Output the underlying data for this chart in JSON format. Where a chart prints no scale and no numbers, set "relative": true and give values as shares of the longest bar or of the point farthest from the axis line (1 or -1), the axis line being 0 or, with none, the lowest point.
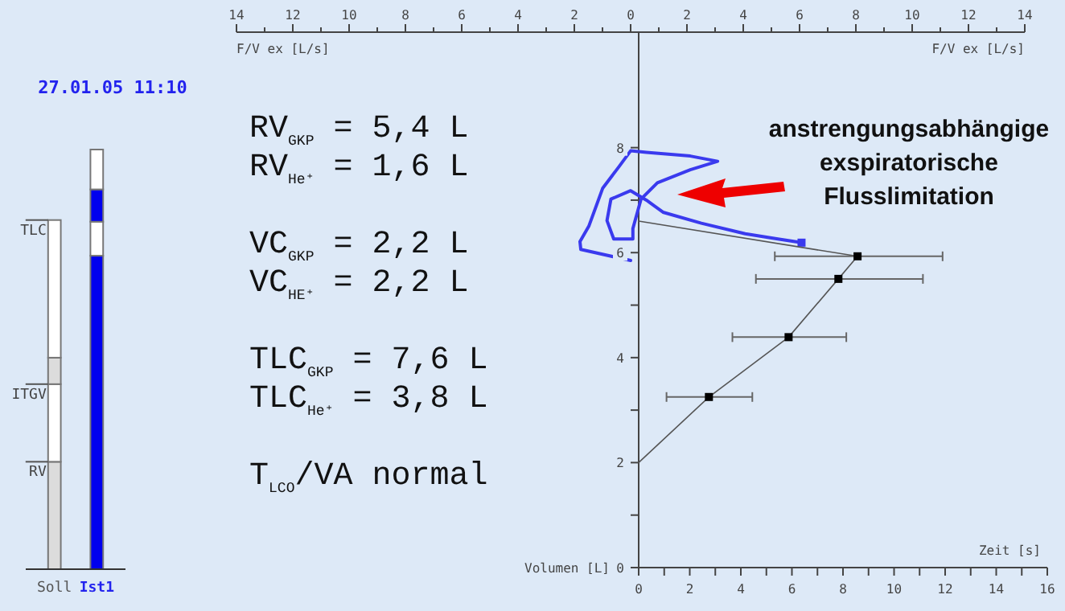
{
  "chart_data": [
    {
      "type": "bar",
      "title": "27.01.05 11:10",
      "categories": [
        "Soll",
        "Ist1"
      ],
      "stacked": true,
      "relative": true,
      "series": [
        {
          "color": "#dcdcdc",
          "values": [
            0.256,
            null
          ]
        },
        {
          "color": "#0000ee",
          "values": [
            null,
            0.747
          ]
        },
        {
          "color": "#ffffff",
          "values": [
            0.185,
            0.081
          ]
        },
        {
          "color": "#dcdcdc",
          "values": [
            0.063,
            null
          ]
        },
        {
          "color": "#0000ee",
          "values": [
            null,
            0.077
          ]
        },
        {
          "color": "#ffffff",
          "values": [
            0.328,
            0.095
          ]
        }
      ],
      "annotations": [
        {
          "text": "TLC",
          "x": "Soll",
          "y": 0.832
        },
        {
          "text": "ITGV",
          "x": "Soll",
          "y": 0.441
        },
        {
          "text": "RV",
          "x": "Soll",
          "y": 0.256
        }
      ]
    },
    {
      "type": "line",
      "xlabel": "Zeit [s]",
      "ylabel": "Volumen [L]",
      "x2label": "F/V ex [L/s]",
      "xlim": [
        0,
        16
      ],
      "xticks": [
        0,
        {
          "value": 1,
          "label": null
        },
        2,
        {
          "value": 3,
          "label": null
        },
        4,
        {
          "value": 5,
          "label": null
        },
        6,
        {
          "value": 7,
          "label": null
        },
        8,
        {
          "value": 9,
          "label": null
        },
        10,
        {
          "value": 11,
          "label": null
        },
        12,
        {
          "value": 13,
          "label": null
        },
        14,
        {
          "value": 15,
          "label": null
        },
        16
      ],
      "x2lim": [
        -14,
        14
      ],
      "x2ticks": [
        {
          "value": -14,
          "label": "14"
        },
        {
          "value": -13,
          "label": null
        },
        {
          "value": -12,
          "label": "12"
        },
        {
          "value": -11,
          "label": null
        },
        {
          "value": -10,
          "label": "10"
        },
        {
          "value": -9,
          "label": null
        },
        {
          "value": -8,
          "label": "8"
        },
        {
          "value": -7,
          "label": null
        },
        {
          "value": -6,
          "label": "6"
        },
        {
          "value": -5,
          "label": null
        },
        {
          "value": -4,
          "label": "4"
        },
        {
          "value": -3,
          "label": null
        },
        {
          "value": -2,
          "label": "2"
        },
        {
          "value": -1,
          "label": null
        },
        0,
        {
          "value": 1,
          "label": null
        },
        2,
        {
          "value": 3,
          "label": null
        },
        4,
        {
          "value": 5,
          "label": null
        },
        6,
        {
          "value": 7,
          "label": null
        },
        8,
        {
          "value": 9,
          "label": null
        },
        10,
        {
          "value": 11,
          "label": null
        },
        12,
        {
          "value": 13,
          "label": null
        },
        14
      ],
      "ylim": [
        0,
        10.2
      ],
      "yticks": [
        0,
        {
          "value": 1,
          "label": null
        },
        2,
        {
          "value": 3,
          "label": null
        },
        4,
        {
          "value": 5,
          "label": null
        },
        6,
        {
          "value": 7,
          "label": null
        },
        8
      ],
      "series": [
        {
          "type": "line",
          "axis": "x2",
          "color": "#3a3aee",
          "x": [
            0,
            -1.77,
            -1.8,
            -1.48,
            -0.99,
            -0.41,
            0,
            0.56,
            2.12,
            3.09,
            2.12,
            0.95,
            0.37,
            0.08,
            0.08,
            -0.6,
            -0.84,
            -0.7,
            0,
            0.56,
            1.15,
            2.51,
            4.07,
            5.23,
            6.07
          ],
          "values": [
            5.85,
            6.06,
            6.21,
            6.51,
            7.23,
            7.64,
            7.94,
            7.91,
            7.84,
            7.74,
            7.58,
            7.33,
            7.02,
            6.46,
            6.26,
            6.26,
            6.61,
            7.02,
            7.18,
            7.0,
            6.77,
            6.56,
            6.36,
            6.26,
            6.19
          ]
        },
        {
          "type": "scatter",
          "axis": "x2",
          "marker": "square",
          "color": "#3a3aee",
          "x": [
            6.07
          ],
          "values": [
            6.19
          ]
        },
        {
          "type": "line",
          "color": "#555555",
          "x": [
            0,
            2.75,
            5.87,
            7.82,
            8.57,
            0
          ],
          "values": [
            2.0,
            3.25,
            4.39,
            5.5,
            5.93,
            6.6
          ]
        },
        {
          "type": "scatter",
          "marker": "square",
          "color": "#000000",
          "x": [
            2.75,
            5.87,
            7.82,
            8.57
          ],
          "values": [
            3.25,
            4.39,
            5.5,
            5.93
          ],
          "xerrors": [
            [
              1.09,
              4.45
            ],
            [
              3.67,
              8.13
            ],
            [
              4.59,
              11.13
            ],
            [
              5.33,
              11.9
            ]
          ]
        }
      ],
      "annotations": [
        "RV$_{GKP}$ = 5,4 L",
        "RV$_{He⁺}$ = 1,6 L",
        "VC$_{GKP}$ = 2,2 L",
        "VC$_{HE⁺}$ = 2,2 L",
        "TLC$_{GKP}$ = 7,6 L",
        "TLC$_{He⁺}$ = 3,8 L",
        "T$_{LCO}$/VA normal",
        "anstrengungsabhängige\nexspiratorische\nFlusslimitation"
      ]
    }
  ]
}
